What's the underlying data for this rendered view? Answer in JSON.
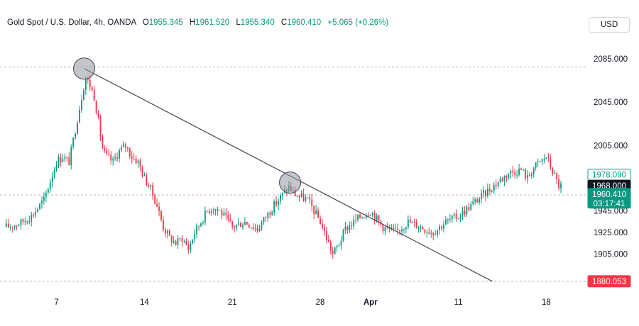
{
  "legend": {
    "symbol": "Gold Spot / U.S. Dollar, 4h, OANDA",
    "open_label": "O",
    "open": "1955.345",
    "high_label": "H",
    "high": "1961.520",
    "low_label": "L",
    "low": "1955.340",
    "close_label": "C",
    "close": "1960.410",
    "change": "+5.065 (+0.26%)"
  },
  "currency_button": "USD",
  "colors": {
    "up": "#089981",
    "down": "#f23645",
    "price_up_tag": "#089981",
    "crosshair_tag": "#131722",
    "low_tag": "#f23645",
    "grid": "#b2b5be",
    "trendline": "#434651",
    "circle": "#9598a1"
  },
  "chart_data": {
    "type": "candlestick",
    "title": "Gold Spot / U.S. Dollar, 4h, OANDA",
    "x_tick_labels": [
      "7",
      "14",
      "21",
      "28",
      "Apr",
      "11",
      "18"
    ],
    "y_tick_labels": [
      "2085.000",
      "2045.000",
      "2005.000",
      "1945.000",
      "1925.000",
      "1905.000"
    ],
    "ylim": [
      1878,
      2100
    ],
    "price_tags": [
      {
        "label": "1978.090",
        "value": 1978.09,
        "style": "outline"
      },
      {
        "label": "1968.000",
        "value": 1968.0,
        "style": "crosshair"
      },
      {
        "label": "1960.410",
        "sublabel": "03:17:41",
        "value": 1960.41,
        "style": "last"
      },
      {
        "label": "1880.053",
        "value": 1880.053,
        "style": "low"
      }
    ],
    "horizontal_levels": [
      2077.5,
      1959.5,
      1880.053
    ],
    "trendline": {
      "from": [
        9.2,
        2076.0
      ],
      "to": [
        41.7,
        1880.0
      ]
    },
    "circles": [
      {
        "x": 9.2,
        "y": 2076.0
      },
      {
        "x": 25.6,
        "y": 1971.0
      }
    ],
    "x_tick_days": [
      7,
      14,
      21,
      28,
      32,
      39,
      46
    ],
    "anchor_days": [
      3,
      4,
      5,
      6,
      7,
      7.5,
      8,
      8.5,
      9,
      9.3,
      9.7,
      10,
      10.3,
      10.7,
      11,
      11.5,
      12,
      12.5,
      13,
      13.5,
      14,
      14.5,
      15,
      15.5,
      16,
      16.5,
      17,
      17.5,
      18,
      18.5,
      19,
      19.5,
      20,
      21,
      22,
      23,
      24,
      25,
      25.5,
      26,
      27,
      28,
      28.5,
      29,
      29.5,
      30,
      31,
      32,
      33,
      34,
      35,
      36,
      37,
      38,
      39,
      40,
      41,
      42,
      43,
      44,
      44.5,
      45,
      46,
      47
    ],
    "anchor_prices": [
      1930,
      1933,
      1940,
      1955,
      1990,
      1995,
      1990,
      2020,
      2050,
      2068,
      2060,
      2050,
      2030,
      2000,
      1995,
      1990,
      2000,
      2005,
      1995,
      1990,
      1975,
      1965,
      1950,
      1930,
      1920,
      1915,
      1920,
      1910,
      1925,
      1935,
      1945,
      1948,
      1945,
      1930,
      1935,
      1928,
      1945,
      1960,
      1967,
      1960,
      1955,
      1935,
      1920,
      1905,
      1915,
      1928,
      1938,
      1945,
      1930,
      1925,
      1935,
      1930,
      1925,
      1935,
      1940,
      1950,
      1960,
      1970,
      1980,
      1983,
      1975,
      1985,
      1995,
      1968
    ]
  }
}
